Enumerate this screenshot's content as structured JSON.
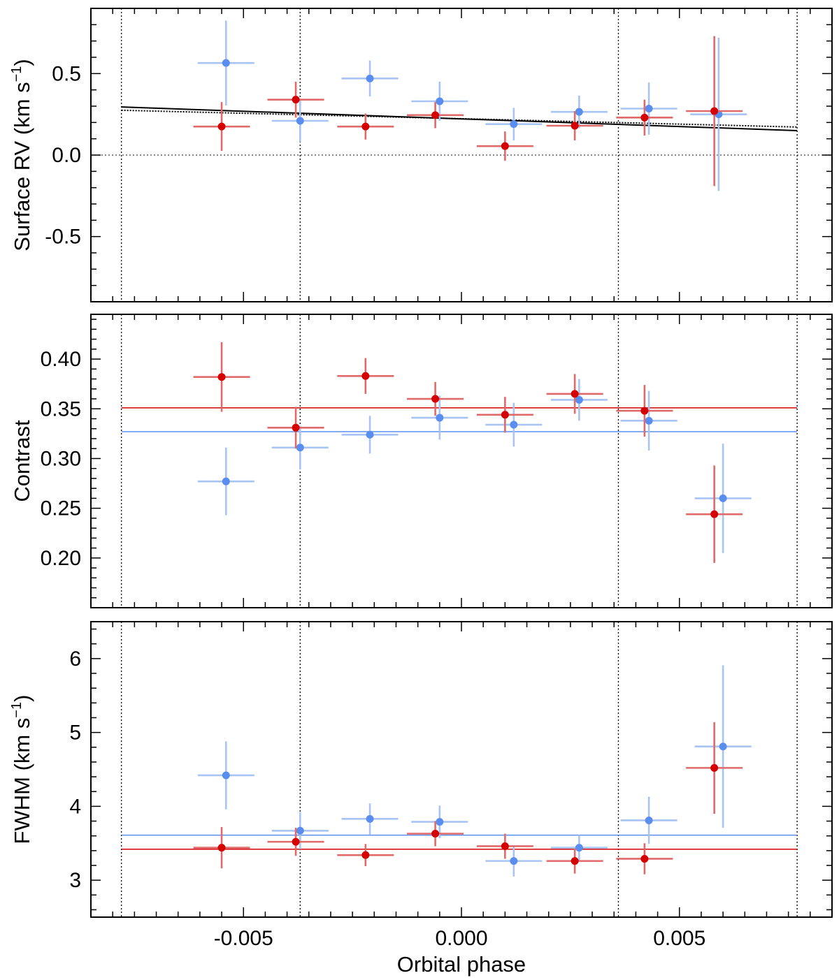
{
  "colors": {
    "red": "#d40000",
    "blue": "#5a8df0",
    "red_err": "#e06a6a",
    "blue_err": "#a8c4f5",
    "black": "#000000"
  },
  "chart_data": {
    "type": "scatter",
    "xlabel": "Orbital phase",
    "x_ticks": [
      {
        "value": -0.005,
        "label": "-0.005"
      },
      {
        "value": 0.0,
        "label": "0.000"
      },
      {
        "value": 0.005,
        "label": "0.005"
      }
    ],
    "xlim": [
      -0.0085,
      0.0085
    ],
    "vertical_lines": [
      -0.0078,
      -0.0037,
      0.0036,
      0.0077
    ],
    "panels": [
      {
        "id": "rv",
        "ylabel_main": "Surface RV (km s",
        "ylabel_sup": "−1",
        "ylabel_close": ")",
        "ylim": [
          -0.9,
          0.9
        ],
        "y_ticks": [
          {
            "value": 0.5,
            "label": "0.5"
          },
          {
            "value": 0.0,
            "label": "0.0"
          },
          {
            "value": -0.5,
            "label": "-0.5"
          }
        ],
        "hlines": [
          {
            "y": 0.0,
            "style": "dotted-gray"
          }
        ],
        "model_lines": [
          {
            "name": "model-solid",
            "style": "solid",
            "x": [
              -0.0078,
              0.0077
            ],
            "y": [
              0.295,
              0.15
            ]
          },
          {
            "name": "model-dotted",
            "style": "dotted",
            "x": [
              -0.0078,
              0.0077
            ],
            "y": [
              0.275,
              0.172
            ]
          }
        ],
        "series": [
          {
            "name": "blue",
            "points": [
              {
                "x": -0.0054,
                "y": 0.565,
                "xerr": 0.00065,
                "yerr": 0.26
              },
              {
                "x": -0.0037,
                "y": 0.21,
                "xerr": 0.00065,
                "yerr": 0.13
              },
              {
                "x": -0.0021,
                "y": 0.47,
                "xerr": 0.00065,
                "yerr": 0.11
              },
              {
                "x": -0.0005,
                "y": 0.33,
                "xerr": 0.00065,
                "yerr": 0.12
              },
              {
                "x": 0.0012,
                "y": 0.19,
                "xerr": 0.00065,
                "yerr": 0.1
              },
              {
                "x": 0.0027,
                "y": 0.265,
                "xerr": 0.00065,
                "yerr": 0.1
              },
              {
                "x": 0.0043,
                "y": 0.285,
                "xerr": 0.00065,
                "yerr": 0.16
              },
              {
                "x": 0.0059,
                "y": 0.25,
                "xerr": 0.00065,
                "yerr": 0.47
              }
            ]
          },
          {
            "name": "red",
            "points": [
              {
                "x": -0.0055,
                "y": 0.175,
                "xerr": 0.00065,
                "yerr": 0.15
              },
              {
                "x": -0.0038,
                "y": 0.34,
                "xerr": 0.00065,
                "yerr": 0.11
              },
              {
                "x": -0.0022,
                "y": 0.175,
                "xerr": 0.00065,
                "yerr": 0.08
              },
              {
                "x": -0.0006,
                "y": 0.245,
                "xerr": 0.00065,
                "yerr": 0.08
              },
              {
                "x": 0.001,
                "y": 0.055,
                "xerr": 0.00065,
                "yerr": 0.09
              },
              {
                "x": 0.0026,
                "y": 0.18,
                "xerr": 0.00065,
                "yerr": 0.09
              },
              {
                "x": 0.0042,
                "y": 0.23,
                "xerr": 0.00065,
                "yerr": 0.11
              },
              {
                "x": 0.0058,
                "y": 0.27,
                "xerr": 0.00065,
                "yerr": 0.46
              }
            ]
          }
        ]
      },
      {
        "id": "contrast",
        "ylabel_main": "Contrast",
        "ylabel_sup": "",
        "ylabel_close": "",
        "ylim": [
          0.15,
          0.445
        ],
        "y_ticks": [
          {
            "value": 0.4,
            "label": "0.40"
          },
          {
            "value": 0.35,
            "label": "0.35"
          },
          {
            "value": 0.3,
            "label": "0.30"
          },
          {
            "value": 0.25,
            "label": "0.25"
          },
          {
            "value": 0.2,
            "label": "0.20"
          }
        ],
        "hlines": [
          {
            "y": 0.351,
            "style": "solid-red"
          },
          {
            "y": 0.327,
            "style": "solid-blue"
          }
        ],
        "model_lines": [],
        "series": [
          {
            "name": "blue",
            "points": [
              {
                "x": -0.0054,
                "y": 0.277,
                "xerr": 0.00065,
                "yerr": 0.034
              },
              {
                "x": -0.0037,
                "y": 0.311,
                "xerr": 0.00065,
                "yerr": 0.022
              },
              {
                "x": -0.0021,
                "y": 0.324,
                "xerr": 0.00065,
                "yerr": 0.019
              },
              {
                "x": -0.0005,
                "y": 0.341,
                "xerr": 0.00065,
                "yerr": 0.022
              },
              {
                "x": 0.0012,
                "y": 0.334,
                "xerr": 0.00065,
                "yerr": 0.022
              },
              {
                "x": 0.0027,
                "y": 0.359,
                "xerr": 0.00065,
                "yerr": 0.021
              },
              {
                "x": 0.0043,
                "y": 0.338,
                "xerr": 0.00065,
                "yerr": 0.03
              },
              {
                "x": 0.006,
                "y": 0.26,
                "xerr": 0.00065,
                "yerr": 0.055
              }
            ]
          },
          {
            "name": "red",
            "points": [
              {
                "x": -0.0055,
                "y": 0.382,
                "xerr": 0.00065,
                "yerr": 0.035
              },
              {
                "x": -0.0038,
                "y": 0.331,
                "xerr": 0.00065,
                "yerr": 0.021
              },
              {
                "x": -0.0022,
                "y": 0.383,
                "xerr": 0.00065,
                "yerr": 0.018
              },
              {
                "x": -0.0006,
                "y": 0.36,
                "xerr": 0.00065,
                "yerr": 0.017
              },
              {
                "x": 0.001,
                "y": 0.344,
                "xerr": 0.00065,
                "yerr": 0.018
              },
              {
                "x": 0.0026,
                "y": 0.365,
                "xerr": 0.00065,
                "yerr": 0.02
              },
              {
                "x": 0.0042,
                "y": 0.348,
                "xerr": 0.00065,
                "yerr": 0.026
              },
              {
                "x": 0.0058,
                "y": 0.244,
                "xerr": 0.00065,
                "yerr": 0.049
              }
            ]
          }
        ]
      },
      {
        "id": "fwhm",
        "ylabel_main": "FWHM (km s",
        "ylabel_sup": "−1",
        "ylabel_close": ")",
        "ylim": [
          2.5,
          6.5
        ],
        "y_ticks": [
          {
            "value": 6,
            "label": "6"
          },
          {
            "value": 5,
            "label": "5"
          },
          {
            "value": 4,
            "label": "4"
          },
          {
            "value": 3,
            "label": "3"
          }
        ],
        "hlines": [
          {
            "y": 3.61,
            "style": "solid-blue"
          },
          {
            "y": 3.42,
            "style": "solid-red"
          }
        ],
        "model_lines": [],
        "series": [
          {
            "name": "blue",
            "points": [
              {
                "x": -0.0054,
                "y": 4.42,
                "xerr": 0.00065,
                "yerr": 0.46
              },
              {
                "x": -0.0037,
                "y": 3.67,
                "xerr": 0.00065,
                "yerr": 0.25
              },
              {
                "x": -0.0021,
                "y": 3.83,
                "xerr": 0.00065,
                "yerr": 0.21
              },
              {
                "x": -0.0005,
                "y": 3.79,
                "xerr": 0.00065,
                "yerr": 0.22
              },
              {
                "x": 0.0012,
                "y": 3.26,
                "xerr": 0.00065,
                "yerr": 0.21
              },
              {
                "x": 0.0027,
                "y": 3.44,
                "xerr": 0.00065,
                "yerr": 0.17
              },
              {
                "x": 0.0043,
                "y": 3.81,
                "xerr": 0.00065,
                "yerr": 0.32
              },
              {
                "x": 0.006,
                "y": 4.81,
                "xerr": 0.00065,
                "yerr": 1.1
              }
            ]
          },
          {
            "name": "red",
            "points": [
              {
                "x": -0.0055,
                "y": 3.44,
                "xerr": 0.00065,
                "yerr": 0.28
              },
              {
                "x": -0.0038,
                "y": 3.52,
                "xerr": 0.00065,
                "yerr": 0.19
              },
              {
                "x": -0.0022,
                "y": 3.34,
                "xerr": 0.00065,
                "yerr": 0.15
              },
              {
                "x": -0.0006,
                "y": 3.63,
                "xerr": 0.00065,
                "yerr": 0.17
              },
              {
                "x": 0.001,
                "y": 3.46,
                "xerr": 0.00065,
                "yerr": 0.17
              },
              {
                "x": 0.0026,
                "y": 3.26,
                "xerr": 0.00065,
                "yerr": 0.17
              },
              {
                "x": 0.0042,
                "y": 3.29,
                "xerr": 0.00065,
                "yerr": 0.21
              },
              {
                "x": 0.0058,
                "y": 4.52,
                "xerr": 0.00065,
                "yerr": 0.62
              }
            ]
          }
        ]
      }
    ]
  }
}
